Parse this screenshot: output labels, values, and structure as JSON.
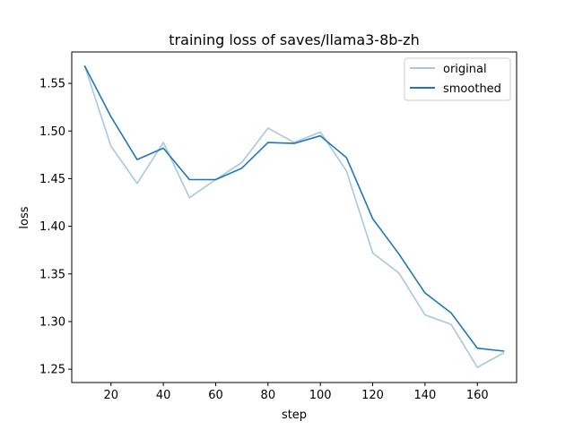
{
  "chart_data": {
    "type": "line",
    "title": "training loss of saves/llama3-8b-zh",
    "xlabel": "step",
    "ylabel": "loss",
    "xlim": [
      5,
      175
    ],
    "ylim": [
      1.236,
      1.583
    ],
    "xticks": [
      20,
      40,
      60,
      80,
      100,
      120,
      140,
      160
    ],
    "yticks": [
      1.25,
      1.3,
      1.35,
      1.4,
      1.45,
      1.5,
      1.55
    ],
    "ytick_labels": [
      "1.25",
      "1.30",
      "1.35",
      "1.40",
      "1.45",
      "1.50",
      "1.55"
    ],
    "grid": false,
    "legend_position": "top-right",
    "x": [
      10,
      20,
      30,
      40,
      50,
      60,
      70,
      80,
      90,
      100,
      110,
      120,
      130,
      140,
      150,
      160,
      170
    ],
    "series": [
      {
        "name": "original",
        "color": "#a6c8e0",
        "values": [
          1.568,
          1.484,
          1.445,
          1.488,
          1.43,
          1.449,
          1.467,
          1.503,
          1.488,
          1.499,
          1.458,
          1.372,
          1.351,
          1.307,
          1.297,
          1.252,
          1.267
        ]
      },
      {
        "name": "smoothed",
        "color": "#1f77b4",
        "values": [
          1.568,
          1.515,
          1.47,
          1.482,
          1.449,
          1.449,
          1.461,
          1.488,
          1.487,
          1.495,
          1.472,
          1.408,
          1.371,
          1.33,
          1.309,
          1.272,
          1.269
        ]
      }
    ]
  }
}
